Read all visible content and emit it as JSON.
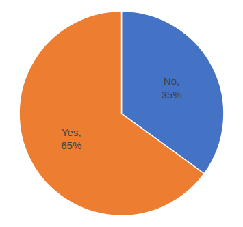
{
  "chart_data": {
    "type": "pie",
    "categories": [
      "No,",
      "Yes,"
    ],
    "values": [
      35,
      65
    ],
    "value_labels": [
      "35%",
      "65%"
    ],
    "colors": [
      "#4472C4",
      "#ED7D31"
    ],
    "data_labels": true
  }
}
